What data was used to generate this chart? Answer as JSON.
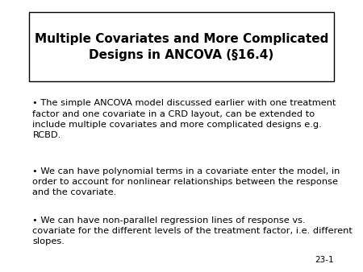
{
  "title_line1": "Multiple Covariates and More Complicated",
  "title_line2": "Designs in ANCOVA (§16.4)",
  "bullet1": "• The simple ANCOVA model discussed earlier with one treatment\nfactor and one covariate in a CRD layout, can be extended to\ninclude multiple covariates and more complicated designs e.g.\nRCBD.",
  "bullet2": "• We can have polynomial terms in a covariate enter the model, in\norder to account for nonlinear relationships between the response\nand the covariate.",
  "bullet3": "• We can have non-parallel regression lines of response vs.\ncovariate for the different levels of the treatment factor, i.e. different\nslopes.",
  "slide_number": "23-1",
  "bg_color": "#ffffff",
  "text_color": "#000000",
  "title_box_color": "#ffffff",
  "title_box_edge": "#000000",
  "body_fontsize": 8.2,
  "title_fontsize": 11.0,
  "slide_num_fontsize": 7.5
}
